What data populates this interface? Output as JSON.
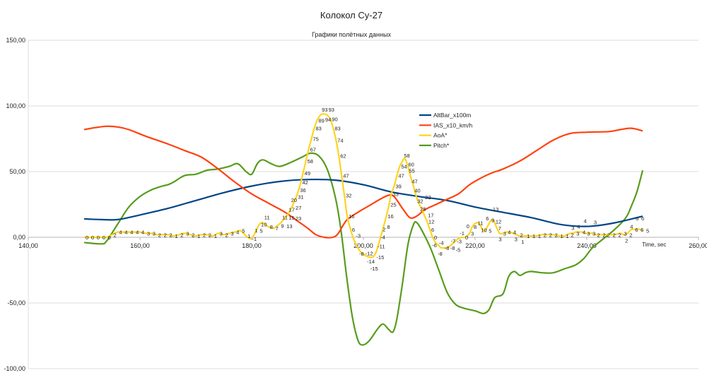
{
  "chart_data": {
    "type": "line",
    "title": "Колокол Су-27",
    "subtitle": "Графики полётных данных",
    "xlabel": "Time, sec",
    "ylabel": "",
    "xlim": [
      140,
      260
    ],
    "ylim": [
      -100,
      150
    ],
    "x_ticks": [
      "140,00",
      "160,00",
      "180,00",
      "200,00",
      "220,00",
      "240,00",
      "260,00"
    ],
    "x_tick_values": [
      140,
      160,
      180,
      200,
      220,
      240,
      260
    ],
    "y_ticks": [
      "150,00",
      "100,00",
      "50,00",
      "0,00",
      "-50,00",
      "-100,00"
    ],
    "y_tick_values": [
      150,
      100,
      50,
      0,
      -50,
      -100
    ],
    "grid": "horizontal",
    "legend": "center-right",
    "series": [
      {
        "name": "AltBar_x100m",
        "color": "#004586",
        "data_labels": false,
        "points": [
          [
            150,
            14
          ],
          [
            153,
            13.5
          ],
          [
            156,
            13.5
          ],
          [
            160,
            17
          ],
          [
            165,
            22
          ],
          [
            170,
            28
          ],
          [
            175,
            34
          ],
          [
            180,
            39
          ],
          [
            185,
            42.5
          ],
          [
            190,
            44
          ],
          [
            195,
            43.5
          ],
          [
            200,
            40
          ],
          [
            205,
            34.5
          ],
          [
            210,
            31
          ],
          [
            215,
            28
          ],
          [
            220,
            23
          ],
          [
            225,
            19
          ],
          [
            230,
            15
          ],
          [
            235,
            10
          ],
          [
            238,
            8.5
          ],
          [
            241,
            8.5
          ],
          [
            245,
            11
          ],
          [
            250,
            16
          ]
        ]
      },
      {
        "name": "IAS_x10_km/h",
        "color": "#ff420e",
        "data_labels": false,
        "points": [
          [
            150,
            82
          ],
          [
            152,
            83.5
          ],
          [
            154,
            84.5
          ],
          [
            156,
            84
          ],
          [
            158,
            82
          ],
          [
            161,
            77
          ],
          [
            165,
            71
          ],
          [
            168,
            66
          ],
          [
            171,
            61
          ],
          [
            174,
            52
          ],
          [
            177,
            42
          ],
          [
            180,
            33
          ],
          [
            183,
            26
          ],
          [
            186,
            19
          ],
          [
            188,
            13
          ],
          [
            190,
            7
          ],
          [
            191.5,
            2
          ],
          [
            193,
            0
          ],
          [
            194.5,
            0
          ],
          [
            195.5,
            3
          ],
          [
            197,
            13
          ],
          [
            199,
            19
          ],
          [
            201,
            24
          ],
          [
            203,
            29
          ],
          [
            204.5,
            32
          ],
          [
            205.5,
            31
          ],
          [
            207,
            22
          ],
          [
            208.3,
            15
          ],
          [
            209.5,
            16
          ],
          [
            211,
            21
          ],
          [
            213,
            25
          ],
          [
            215,
            29
          ],
          [
            217,
            33
          ],
          [
            219,
            40
          ],
          [
            221,
            45
          ],
          [
            223,
            49
          ],
          [
            225,
            52
          ],
          [
            228,
            58
          ],
          [
            231,
            66
          ],
          [
            234,
            74
          ],
          [
            237,
            79
          ],
          [
            240,
            80
          ],
          [
            244,
            80.5
          ],
          [
            246,
            82
          ],
          [
            248,
            83
          ],
          [
            250,
            81
          ]
        ]
      },
      {
        "name": "AoA*",
        "color": "#ffd320",
        "data_labels": true,
        "points": [
          [
            150,
            0
          ],
          [
            151,
            0
          ],
          [
            152,
            0
          ],
          [
            153,
            0
          ],
          [
            154,
            0
          ],
          [
            155,
            2
          ],
          [
            156,
            4
          ],
          [
            157,
            4
          ],
          [
            158,
            4
          ],
          [
            159,
            4
          ],
          [
            160,
            4
          ],
          [
            161,
            3
          ],
          [
            162,
            3
          ],
          [
            163,
            2
          ],
          [
            164,
            2
          ],
          [
            165,
            2
          ],
          [
            166,
            1
          ],
          [
            167,
            2
          ],
          [
            168,
            3
          ],
          [
            169,
            2
          ],
          [
            170,
            1
          ],
          [
            171,
            2
          ],
          [
            172,
            2
          ],
          [
            173,
            1
          ],
          [
            174,
            3
          ],
          [
            175,
            2
          ],
          [
            176,
            3
          ],
          [
            177,
            4
          ],
          [
            178,
            5
          ],
          [
            179,
            1
          ],
          [
            179.8,
            -1
          ],
          [
            180.3,
            1
          ],
          [
            180.8,
            5
          ],
          [
            181.4,
            10
          ],
          [
            182,
            11
          ],
          [
            183,
            8
          ],
          [
            184,
            7
          ],
          [
            184.6,
            9
          ],
          [
            185.2,
            11
          ],
          [
            185.6,
            13
          ],
          [
            186,
            15
          ],
          [
            186.4,
            17
          ],
          [
            186.8,
            20
          ],
          [
            187.2,
            23
          ],
          [
            187.6,
            27
          ],
          [
            188,
            31
          ],
          [
            188.4,
            36
          ],
          [
            188.8,
            42
          ],
          [
            189.2,
            49
          ],
          [
            189.7,
            58
          ],
          [
            190.2,
            67
          ],
          [
            190.7,
            75
          ],
          [
            191.2,
            83
          ],
          [
            191.7,
            89
          ],
          [
            192.3,
            93
          ],
          [
            192.9,
            94
          ],
          [
            193.5,
            93
          ],
          [
            194.1,
            90
          ],
          [
            194.6,
            83
          ],
          [
            195.1,
            74
          ],
          [
            195.6,
            62
          ],
          [
            196.1,
            47
          ],
          [
            196.6,
            32
          ],
          [
            197.1,
            16
          ],
          [
            197.7,
            6
          ],
          [
            198.4,
            -3
          ],
          [
            199,
            -8
          ],
          [
            199.7,
            -12
          ],
          [
            200.4,
            -14
          ],
          [
            201,
            -15
          ],
          [
            201.7,
            -15
          ],
          [
            202.3,
            -11
          ],
          [
            202.8,
            -4
          ],
          [
            203.2,
            2
          ],
          [
            203.6,
            8
          ],
          [
            204.1,
            16
          ],
          [
            204.6,
            25
          ],
          [
            205,
            33
          ],
          [
            205.5,
            39
          ],
          [
            206,
            47
          ],
          [
            206.5,
            54
          ],
          [
            207,
            58
          ],
          [
            207.4,
            60
          ],
          [
            207.9,
            55
          ],
          [
            208.4,
            47
          ],
          [
            208.9,
            40
          ],
          [
            209.4,
            32
          ],
          [
            209.9,
            26
          ],
          [
            210.4,
            22
          ],
          [
            210.9,
            17
          ],
          [
            211.4,
            12
          ],
          [
            211.9,
            6
          ],
          [
            212.4,
            0
          ],
          [
            212.9,
            -4
          ],
          [
            213.4,
            -6
          ],
          [
            213.9,
            -8
          ],
          [
            214.4,
            -8
          ],
          [
            214.9,
            -8
          ],
          [
            215.4,
            -7
          ],
          [
            215.9,
            -5
          ],
          [
            216.5,
            -3
          ],
          [
            217,
            -1
          ],
          [
            217.6,
            0
          ],
          [
            218.2,
            0
          ],
          [
            219,
            3
          ],
          [
            219.5,
            8
          ],
          [
            220.2,
            11
          ],
          [
            220.8,
            10
          ],
          [
            221.3,
            6
          ],
          [
            221.8,
            5
          ],
          [
            222.3,
            9
          ],
          [
            222.9,
            13
          ],
          [
            223.4,
            12
          ],
          [
            223.9,
            7
          ],
          [
            224.4,
            3
          ],
          [
            225,
            3
          ],
          [
            225.6,
            4
          ],
          [
            226.2,
            4
          ],
          [
            226.8,
            3
          ],
          [
            227.4,
            2
          ],
          [
            228,
            1
          ],
          [
            229,
            1
          ],
          [
            230,
            1
          ],
          [
            231,
            1
          ],
          [
            232,
            2
          ],
          [
            233,
            2
          ],
          [
            234,
            2
          ],
          [
            235,
            1
          ],
          [
            236,
            1
          ],
          [
            236.5,
            2
          ],
          [
            237,
            3
          ],
          [
            237.5,
            3
          ],
          [
            238,
            4
          ],
          [
            238.6,
            4
          ],
          [
            239.2,
            4
          ],
          [
            239.8,
            3
          ],
          [
            240.4,
            3
          ],
          [
            241,
            3
          ],
          [
            241.6,
            2
          ],
          [
            242.2,
            2
          ],
          [
            243,
            2
          ],
          [
            244,
            2
          ],
          [
            245,
            2
          ],
          [
            246,
            3
          ],
          [
            246.6,
            2
          ],
          [
            247,
            2
          ],
          [
            247.5,
            4
          ],
          [
            248,
            6
          ],
          [
            248.5,
            6
          ],
          [
            249,
            6
          ],
          [
            249.5,
            6
          ],
          [
            250,
            5
          ]
        ]
      },
      {
        "name": "Pitch*",
        "color": "#579d1c",
        "data_labels": false,
        "points": [
          [
            150,
            -4
          ],
          [
            153,
            -5
          ],
          [
            154,
            -3
          ],
          [
            156,
            10
          ],
          [
            158,
            23
          ],
          [
            160,
            31
          ],
          [
            162,
            36
          ],
          [
            164,
            39
          ],
          [
            165,
            40
          ],
          [
            166,
            42
          ],
          [
            168,
            47
          ],
          [
            170,
            48
          ],
          [
            172,
            51
          ],
          [
            174,
            52
          ],
          [
            176,
            54
          ],
          [
            177.5,
            56
          ],
          [
            179,
            50
          ],
          [
            180,
            48
          ],
          [
            181,
            56
          ],
          [
            182,
            59
          ],
          [
            183.5,
            56
          ],
          [
            185,
            54
          ],
          [
            187,
            57
          ],
          [
            189,
            61
          ],
          [
            190.5,
            64
          ],
          [
            192,
            62
          ],
          [
            193.5,
            52
          ],
          [
            195,
            30
          ],
          [
            196,
            5
          ],
          [
            197,
            -30
          ],
          [
            198,
            -60
          ],
          [
            199,
            -78
          ],
          [
            199.8,
            -82
          ],
          [
            201,
            -79
          ],
          [
            202.5,
            -70
          ],
          [
            203.5,
            -66
          ],
          [
            204.5,
            -70
          ],
          [
            205.3,
            -72
          ],
          [
            206,
            -62
          ],
          [
            207,
            -35
          ],
          [
            208,
            -5
          ],
          [
            209,
            10
          ],
          [
            209.6,
            11
          ],
          [
            210.5,
            5
          ],
          [
            212,
            -8
          ],
          [
            213.5,
            -25
          ],
          [
            215,
            -42
          ],
          [
            216.5,
            -51
          ],
          [
            218,
            -54
          ],
          [
            220,
            -56
          ],
          [
            221.5,
            -58
          ],
          [
            222.5,
            -55
          ],
          [
            223.5,
            -46
          ],
          [
            225,
            -43
          ],
          [
            226,
            -30
          ],
          [
            227,
            -26
          ],
          [
            228,
            -29
          ],
          [
            229,
            -27
          ],
          [
            230,
            -26
          ],
          [
            232,
            -27
          ],
          [
            234,
            -27
          ],
          [
            236,
            -24
          ],
          [
            238,
            -21
          ],
          [
            239.5,
            -16
          ],
          [
            241,
            -8
          ],
          [
            243,
            -1
          ],
          [
            245,
            6
          ],
          [
            247,
            15
          ],
          [
            248,
            24
          ],
          [
            249,
            35
          ],
          [
            250,
            51
          ]
        ]
      }
    ]
  }
}
